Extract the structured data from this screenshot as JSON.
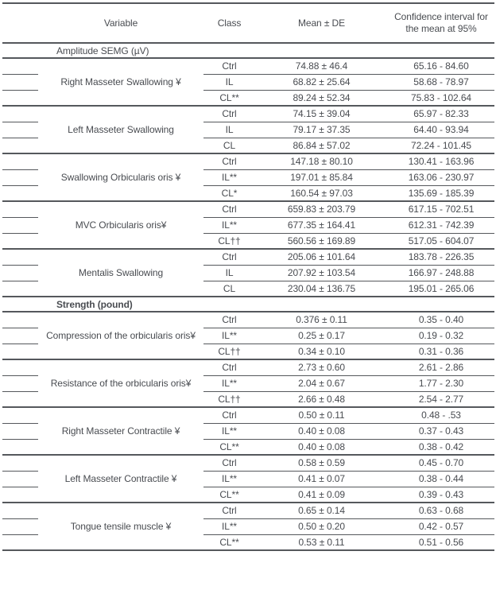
{
  "table": {
    "columns": {
      "stub": "",
      "variable": "Variable",
      "class": "Class",
      "mean": "Mean ± DE",
      "ci": "Confidence interval for the mean at 95%"
    },
    "sections": [
      {
        "title": "Amplitude SEMG (µV)",
        "bold": false,
        "groups": [
          {
            "variable": "Right Masseter Swallowing ¥",
            "rows": [
              {
                "class_label": "Ctrl",
                "mean": "74.88 ± 46.4",
                "ci": "65.16 - 84.60"
              },
              {
                "class_label": "IL",
                "mean": "68.82 ± 25.64",
                "ci": "58.68 - 78.97"
              },
              {
                "class_label": "CL**",
                "mean": "89.24 ± 52.34",
                "ci": "75.83 - 102.64"
              }
            ]
          },
          {
            "variable": "Left Masseter Swallowing",
            "rows": [
              {
                "class_label": "Ctrl",
                "mean": "74.15 ± 39.04",
                "ci": "65.97 - 82.33"
              },
              {
                "class_label": "IL",
                "mean": "79.17 ± 37.35",
                "ci": "64.40 - 93.94"
              },
              {
                "class_label": "CL",
                "mean": "86.84 ± 57.02",
                "ci": "72.24 - 101.45"
              }
            ]
          },
          {
            "variable": "Swallowing Orbicularis oris ¥",
            "rows": [
              {
                "class_label": "Ctrl",
                "mean": "147.18 ± 80.10",
                "ci": "130.41 - 163.96"
              },
              {
                "class_label": "IL**",
                "mean": "197.01 ± 85.84",
                "ci": "163.06 - 230.97"
              },
              {
                "class_label": "CL*",
                "mean": "160.54 ± 97.03",
                "ci": "135.69 - 185.39"
              }
            ]
          },
          {
            "variable": "MVC Orbicularis oris¥",
            "rows": [
              {
                "class_label": "Ctrl",
                "mean": "659.83 ± 203.79",
                "ci": "617.15 - 702.51"
              },
              {
                "class_label": "IL**",
                "mean": "677.35 ± 164.41",
                "ci": "612.31 - 742.39"
              },
              {
                "class_label": "CL††",
                "mean": "560.56 ± 169.89",
                "ci": "517.05 - 604.07"
              }
            ]
          },
          {
            "variable": "Mentalis Swallowing",
            "rows": [
              {
                "class_label": "Ctrl",
                "mean": "205.06 ± 101.64",
                "ci": "183.78 - 226.35"
              },
              {
                "class_label": "IL",
                "mean": "207.92 ± 103.54",
                "ci": "166.97 - 248.88"
              },
              {
                "class_label": "CL",
                "mean": "230.04 ± 136.75",
                "ci": "195.01 - 265.06"
              }
            ]
          }
        ]
      },
      {
        "title": "Strength (pound)",
        "bold": true,
        "groups": [
          {
            "variable": "Compression of the orbicularis oris¥",
            "rows": [
              {
                "class_label": "Ctrl",
                "mean": "0.376 ± 0.11",
                "ci": "0.35 - 0.40"
              },
              {
                "class_label": "IL**",
                "mean": "0.25 ± 0.17",
                "ci": "0.19 - 0.32"
              },
              {
                "class_label": "CL††",
                "mean": "0.34 ± 0.10",
                "ci": "0.31 - 0.36"
              }
            ]
          },
          {
            "variable": "Resistance of the orbicularis oris¥",
            "rows": [
              {
                "class_label": "Ctrl",
                "mean": "2.73 ± 0.60",
                "ci": "2.61 - 2.86"
              },
              {
                "class_label": "IL**",
                "mean": "2.04 ± 0.67",
                "ci": "1.77 - 2.30"
              },
              {
                "class_label": "CL††",
                "mean": "2.66 ± 0.48",
                "ci": "2.54 - 2.77"
              }
            ]
          },
          {
            "variable": "Right Masseter Contractile ¥",
            "rows": [
              {
                "class_label": "Ctrl",
                "mean": "0.50 ± 0.11",
                "ci": "0.48 - .53"
              },
              {
                "class_label": "IL**",
                "mean": "0.40 ± 0.08",
                "ci": "0.37 - 0.43"
              },
              {
                "class_label": "CL**",
                "mean": "0.40 ± 0.08",
                "ci": "0.38 - 0.42"
              }
            ]
          },
          {
            "variable": "Left Masseter Contractile ¥",
            "rows": [
              {
                "class_label": "Ctrl",
                "mean": "0.58 ± 0.59",
                "ci": "0.45 - 0.70"
              },
              {
                "class_label": "IL**",
                "mean": "0.41 ± 0.07",
                "ci": "0.38 - 0.44"
              },
              {
                "class_label": "CL**",
                "mean": "0.41 ± 0.09",
                "ci": "0.39 - 0.43"
              }
            ]
          },
          {
            "variable": "Tongue tensile muscle ¥",
            "rows": [
              {
                "class_label": "Ctrl",
                "mean": "0.65 ± 0.14",
                "ci": "0.63 - 0.68"
              },
              {
                "class_label": "IL**",
                "mean": "0.50 ± 0.20",
                "ci": "0.42 - 0.57"
              },
              {
                "class_label": "CL**",
                "mean": "0.53 ± 0.11",
                "ci": "0.51 - 0.56"
              }
            ]
          }
        ]
      }
    ]
  }
}
